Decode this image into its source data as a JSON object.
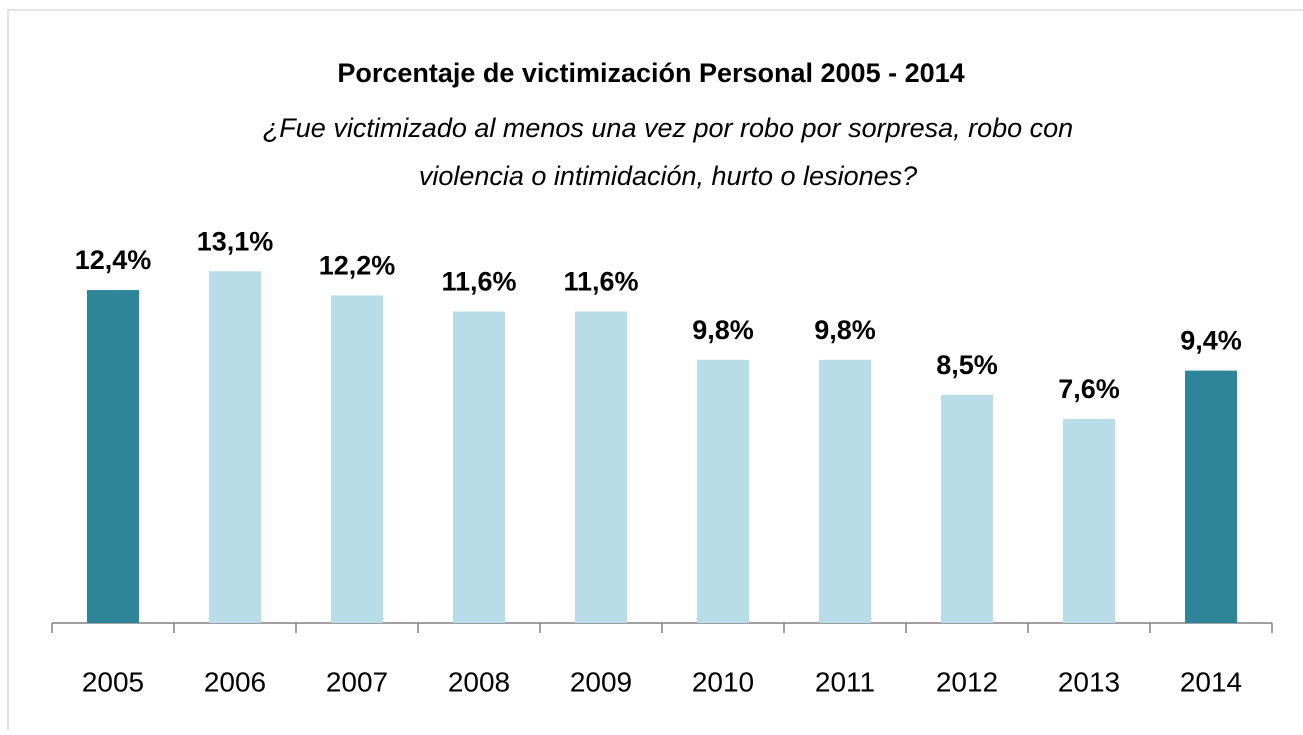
{
  "chart_data": {
    "type": "bar",
    "title": "Porcentaje de victimización Personal 2005 - 2014",
    "subtitle": [
      "¿Fue victimizado al menos una vez por robo por sorpresa, robo con",
      "violencia o intimidación, hurto o lesiones?"
    ],
    "categories": [
      "2005",
      "2006",
      "2007",
      "2008",
      "2009",
      "2010",
      "2011",
      "2012",
      "2013",
      "2014"
    ],
    "values": [
      12.4,
      13.1,
      12.2,
      11.6,
      11.6,
      9.8,
      9.8,
      8.5,
      7.6,
      9.4
    ],
    "value_labels": [
      "12,4%",
      "13,1%",
      "12,2%",
      "11,6%",
      "11,6%",
      "9,8%",
      "9,8%",
      "8,5%",
      "7,6%",
      "9,4%"
    ],
    "colors": [
      "#2e8499",
      "#b8dde8",
      "#b8dde8",
      "#b8dde8",
      "#b8dde8",
      "#b8dde8",
      "#b8dde8",
      "#b8dde8",
      "#b8dde8",
      "#2e8499"
    ]
  }
}
